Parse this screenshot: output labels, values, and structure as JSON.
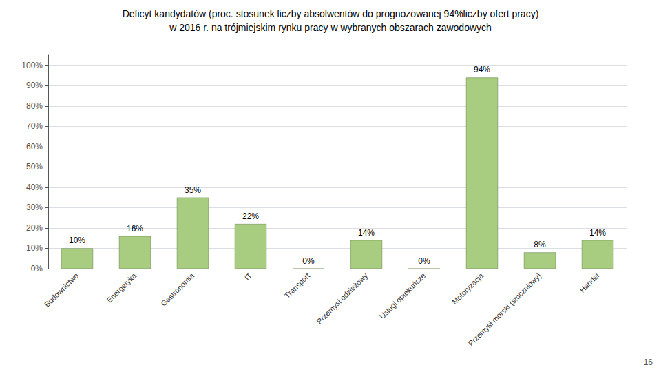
{
  "chart_data": {
    "type": "bar",
    "title": "Deficyt kandydatów (proc. stosunek liczby absolwentów do prognozowanej 94%liczby ofert pracy)",
    "subtitle": "w 2016 r. na trójmiejskim rynku pracy w wybranych obszarach zawodowych",
    "annotations": [
      "16"
    ],
    "categories": [
      "Budownictwo",
      "Energetyka",
      "Gastronomia",
      "IT",
      "Transport",
      "Przemysł odzieżowy",
      "Usługi opiekuńcze",
      "Motoryzacja",
      "Przemysł morski (stoczniowy)",
      "Handel"
    ],
    "values": [
      10,
      16,
      35,
      22,
      0,
      14,
      0,
      94,
      8,
      14
    ],
    "value_labels": [
      "10%",
      "16%",
      "35%",
      "22%",
      "0%",
      "14%",
      "0%",
      "94%",
      "8%",
      "14%"
    ],
    "data_labels": true,
    "color": "#a8cc80",
    "ylim": [
      0,
      105
    ],
    "yticks": [
      {
        "value": 0,
        "label": "0%"
      },
      {
        "value": 10,
        "label": "10%"
      },
      {
        "value": 20,
        "label": "20%"
      },
      {
        "value": 30,
        "label": "30%"
      },
      {
        "value": 40,
        "label": "40%"
      },
      {
        "value": 50,
        "label": "50%"
      },
      {
        "value": 60,
        "label": "60%"
      },
      {
        "value": 70,
        "label": "70%"
      },
      {
        "value": 80,
        "label": "80%"
      },
      {
        "value": 90,
        "label": "90%"
      },
      {
        "value": 100,
        "label": "100%"
      }
    ],
    "grid": true
  }
}
